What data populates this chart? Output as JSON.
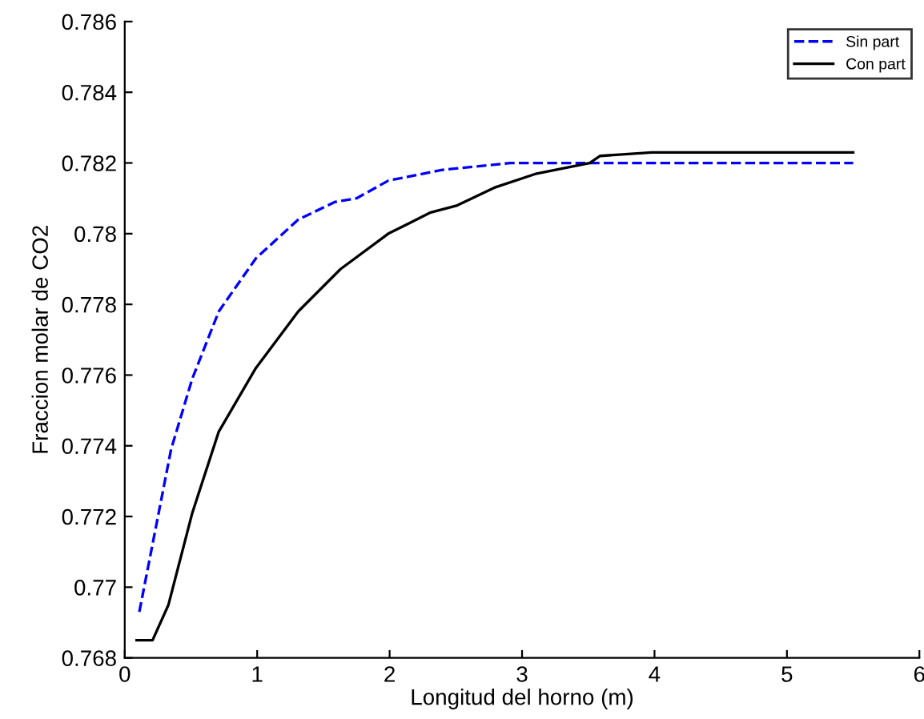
{
  "chart_data": {
    "type": "line",
    "xlabel": "Longitud del horno (m)",
    "ylabel": "Fraccion molar de CO2",
    "xlim": [
      0,
      6
    ],
    "xticks": [
      0,
      1,
      2,
      3,
      4,
      5,
      6
    ],
    "ylim": [
      0.768,
      0.786
    ],
    "yticks": [
      0.768,
      0.77,
      0.772,
      0.774,
      0.776,
      0.778,
      0.78,
      0.782,
      0.784,
      0.786
    ],
    "legend": "top right",
    "grid": false,
    "series": [
      {
        "name": "Sin part",
        "color": "#0000ff",
        "line_style": "dashed",
        "x": [
          0.11,
          0.23,
          0.35,
          0.51,
          0.71,
          0.99,
          1.31,
          1.59,
          1.75,
          1.99,
          2.39,
          2.91,
          3.5,
          4.5,
          5.5
        ],
        "values": [
          0.7693,
          0.7716,
          0.7739,
          0.7759,
          0.7778,
          0.7793,
          0.7804,
          0.7809,
          0.781,
          0.7815,
          0.7818,
          0.782,
          0.782,
          0.782,
          0.782
        ]
      },
      {
        "name": "Con part",
        "color": "#000000",
        "line_style": "solid",
        "x": [
          0.09,
          0.21,
          0.33,
          0.51,
          0.71,
          0.99,
          1.31,
          1.63,
          1.99,
          2.31,
          2.51,
          2.79,
          3.11,
          3.51,
          3.59,
          3.98,
          4.5,
          5.5
        ],
        "values": [
          0.7685,
          0.7685,
          0.7695,
          0.7721,
          0.7744,
          0.7762,
          0.7778,
          0.779,
          0.78,
          0.7806,
          0.7808,
          0.7813,
          0.7817,
          0.782,
          0.7822,
          0.7823,
          0.7823,
          0.7823
        ]
      }
    ]
  }
}
